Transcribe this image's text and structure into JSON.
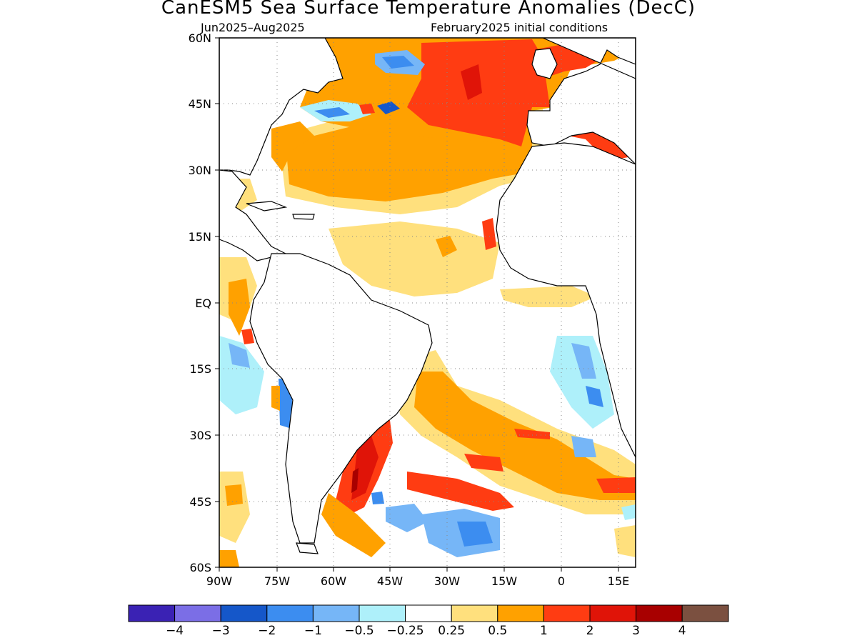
{
  "header": {
    "title": "CanESM5 Sea Surface Temperature Anomalies (DecC)",
    "period": "Jun2025–Aug2025",
    "init": "February2025 initial conditions"
  },
  "map": {
    "lat_labels": [
      "60N",
      "45N",
      "30N",
      "15N",
      "EQ",
      "15S",
      "30S",
      "45S",
      "60S"
    ],
    "lon_labels": [
      "90W",
      "75W",
      "60W",
      "45W",
      "30W",
      "15W",
      "0",
      "15E"
    ],
    "lat_range": [
      -60,
      60
    ],
    "lon_range": [
      -90,
      18
    ],
    "grid": "dotted"
  },
  "colorbar": {
    "colors": [
      "#3a22b4",
      "#7b6ee6",
      "#1557c9",
      "#3c8df0",
      "#76b6f7",
      "#aef0fa",
      "#ffffff",
      "#ffe07d",
      "#ffa100",
      "#ff3c12",
      "#e01408",
      "#a80000",
      "#7b5040"
    ],
    "labels": [
      "−4",
      "−3",
      "−2",
      "−1",
      "−0.5",
      "−0.25",
      "0.25",
      "0.5",
      "1",
      "2",
      "3",
      "4"
    ]
  }
}
